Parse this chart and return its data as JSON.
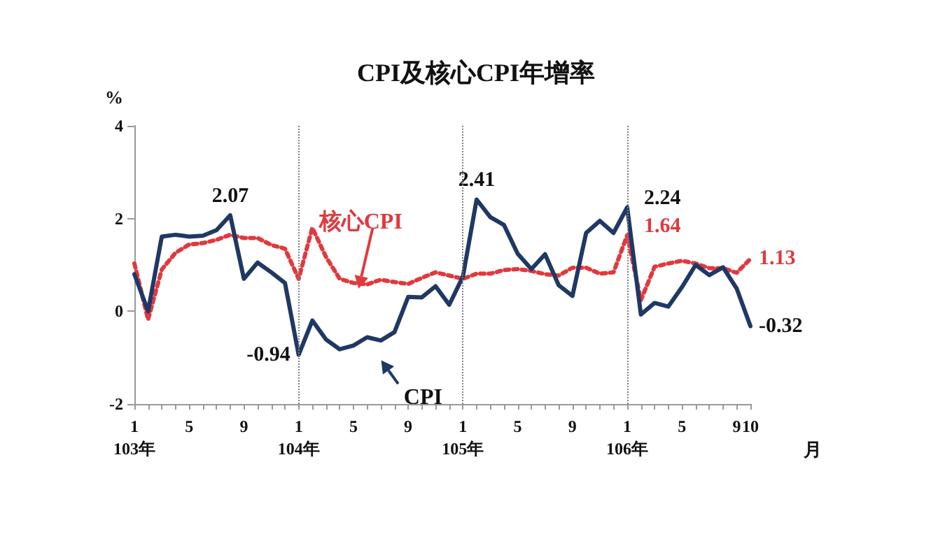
{
  "chart_data": {
    "type": "line",
    "title": "CPI及核心CPI年增率",
    "ylabel": "%",
    "xlabel": "月",
    "categories": [
      "1\n103年",
      null,
      null,
      null,
      "5",
      null,
      null,
      null,
      "9",
      null,
      null,
      null,
      "1\n104年",
      null,
      null,
      null,
      "5",
      null,
      null,
      null,
      "9",
      null,
      null,
      null,
      "1\n105年",
      null,
      null,
      null,
      "5",
      null,
      null,
      null,
      "9",
      null,
      null,
      null,
      "1\n106年",
      null,
      null,
      null,
      "5",
      null,
      null,
      null,
      "9",
      "10"
    ],
    "ylim": [
      -2,
      4
    ],
    "yticks": [
      -2,
      0,
      2,
      4
    ],
    "grid": false,
    "series": [
      {
        "name": "CPI",
        "color": "#1f3864",
        "line_style": "solid",
        "values": [
          0.8,
          0.0,
          1.61,
          1.65,
          1.61,
          1.63,
          1.75,
          2.07,
          0.7,
          1.05,
          0.84,
          0.61,
          -0.94,
          -0.2,
          -0.61,
          -0.82,
          -0.74,
          -0.56,
          -0.63,
          -0.45,
          0.31,
          0.3,
          0.54,
          0.14,
          0.75,
          2.41,
          2.03,
          1.86,
          1.24,
          0.91,
          1.23,
          0.56,
          0.33,
          1.69,
          1.95,
          1.69,
          2.24,
          -0.07,
          0.18,
          0.1,
          0.52,
          1.0,
          0.78,
          0.95,
          0.49,
          -0.32
        ],
        "value_labels": [
          null,
          null,
          null,
          null,
          null,
          null,
          null,
          "2.07",
          null,
          null,
          null,
          null,
          "-0.94",
          null,
          null,
          null,
          null,
          null,
          null,
          null,
          null,
          null,
          null,
          null,
          null,
          "2.41",
          null,
          null,
          null,
          null,
          null,
          null,
          null,
          null,
          null,
          null,
          "2.24",
          null,
          null,
          null,
          null,
          null,
          null,
          null,
          null,
          "-0.32"
        ]
      },
      {
        "name": "核心CPI",
        "color": "#e0393e",
        "line_style": "dotted",
        "values": [
          1.03,
          -0.18,
          0.9,
          1.26,
          1.44,
          1.47,
          1.54,
          1.65,
          1.58,
          1.58,
          1.43,
          1.35,
          0.7,
          1.8,
          1.17,
          0.7,
          0.61,
          0.58,
          0.68,
          0.63,
          0.59,
          0.72,
          0.84,
          0.77,
          0.7,
          0.81,
          0.81,
          0.89,
          0.91,
          0.87,
          0.8,
          0.77,
          0.94,
          0.94,
          0.81,
          0.84,
          1.64,
          0.24,
          0.96,
          1.03,
          1.09,
          1.03,
          0.93,
          0.93,
          0.83,
          1.13
        ],
        "value_labels": [
          null,
          null,
          null,
          null,
          null,
          null,
          null,
          null,
          null,
          null,
          null,
          null,
          null,
          null,
          null,
          null,
          null,
          null,
          null,
          null,
          null,
          null,
          null,
          null,
          null,
          null,
          null,
          null,
          null,
          null,
          null,
          null,
          null,
          null,
          null,
          null,
          "1.64",
          null,
          null,
          null,
          null,
          null,
          null,
          null,
          null,
          "1.13"
        ]
      }
    ],
    "ref_lines": [
      {
        "axis": "x",
        "value": "1\n104年",
        "color": "#808080",
        "line_style": "dotted"
      },
      {
        "axis": "x",
        "value": "1\n105年",
        "color": "#808080",
        "line_style": "dotted"
      },
      {
        "axis": "x",
        "value": "1\n106年",
        "color": "#808080",
        "line_style": "dotted"
      }
    ]
  }
}
